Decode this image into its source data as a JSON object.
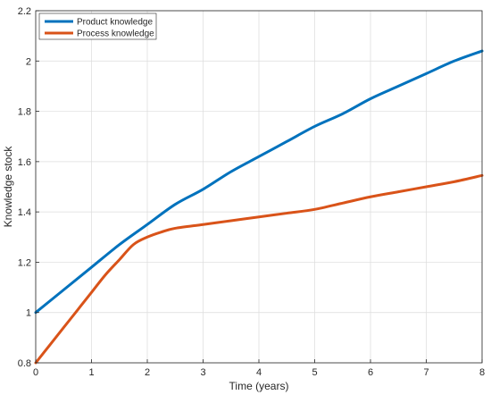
{
  "chart_data": {
    "type": "line",
    "title": "",
    "xlabel": "Time (years)",
    "ylabel": "Knowledge stock",
    "xlim": [
      0,
      8
    ],
    "ylim": [
      0.8,
      2.2
    ],
    "xticks": [
      0,
      1,
      2,
      3,
      4,
      5,
      6,
      7,
      8
    ],
    "yticks": [
      0.8,
      1,
      1.2,
      1.4,
      1.6,
      1.8,
      2,
      2.2
    ],
    "xtick_labels": [
      "0",
      "1",
      "2",
      "3",
      "4",
      "5",
      "6",
      "7",
      "8"
    ],
    "ytick_labels": [
      "0.8",
      "1",
      "1.2",
      "1.4",
      "1.6",
      "1.8",
      "2",
      "2.2"
    ],
    "grid": true,
    "legend_position": "top-left",
    "series": [
      {
        "name": "Product knowledge",
        "color": "#0072BD",
        "x": [
          0,
          0.5,
          1,
          1.5,
          2,
          2.5,
          3,
          3.5,
          4,
          4.5,
          5,
          5.5,
          6,
          6.5,
          7,
          7.5,
          8
        ],
        "y": [
          1.0,
          1.09,
          1.18,
          1.27,
          1.35,
          1.43,
          1.49,
          1.56,
          1.62,
          1.68,
          1.74,
          1.79,
          1.85,
          1.9,
          1.95,
          2.0,
          2.04
        ]
      },
      {
        "name": "Process knowledge",
        "color": "#D95319",
        "x": [
          0,
          0.25,
          0.5,
          0.75,
          1,
          1.25,
          1.5,
          1.75,
          2,
          2.25,
          2.5,
          3,
          3.5,
          4,
          4.5,
          5,
          5.5,
          6,
          6.5,
          7,
          7.5,
          8
        ],
        "y": [
          0.8,
          0.87,
          0.94,
          1.01,
          1.08,
          1.15,
          1.21,
          1.27,
          1.3,
          1.32,
          1.335,
          1.35,
          1.365,
          1.38,
          1.395,
          1.41,
          1.435,
          1.46,
          1.48,
          1.5,
          1.52,
          1.545
        ]
      }
    ]
  }
}
